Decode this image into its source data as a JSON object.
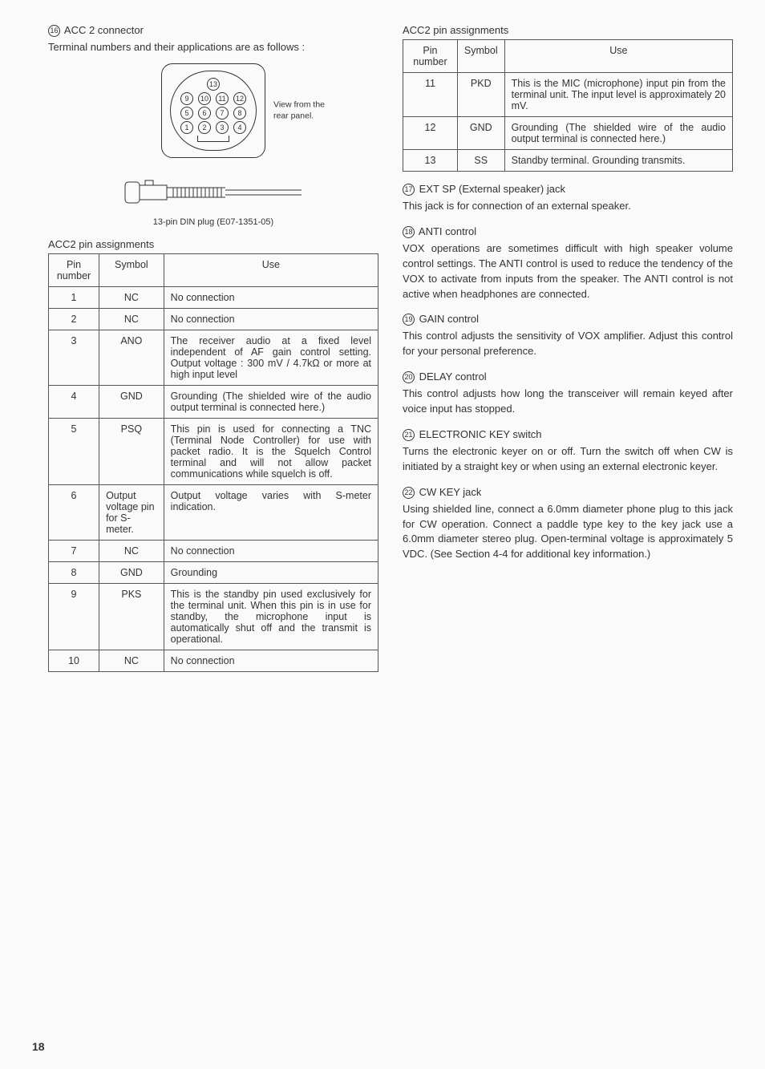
{
  "left": {
    "hd_num": "16",
    "hd_title": "ACC 2 connector",
    "intro": "Terminal numbers and their applications are as follows :",
    "din_note_l1": "View from the",
    "din_note_l2": "rear panel.",
    "din_caption": "13-pin DIN plug (E07-1351-05)",
    "table_title": "ACC2 pin assignments",
    "th_pin": "Pin number",
    "th_sym": "Symbol",
    "th_use": "Use",
    "rows": [
      {
        "n": "1",
        "s": "NC",
        "u": "No connection"
      },
      {
        "n": "2",
        "s": "NC",
        "u": "No connection"
      },
      {
        "n": "3",
        "s": "ANO",
        "u": "The receiver audio at a fixed level independent of AF gain control setting. Output voltage : 300 mV / 4.7kΩ or more at high input level"
      },
      {
        "n": "4",
        "s": "GND",
        "u": "Grounding (The shielded wire of the audio output terminal is connected here.)"
      },
      {
        "n": "5",
        "s": "PSQ",
        "u": "This pin is used for connecting a TNC (Terminal Node Controller) for use with packet radio. It is the Squelch Control terminal and will not allow packet communications while squelch is off."
      },
      {
        "n": "6",
        "s": "Output voltage pin for S-meter.",
        "u": "Output voltage varies with S-meter indication."
      },
      {
        "n": "7",
        "s": "NC",
        "u": "No connection"
      },
      {
        "n": "8",
        "s": "GND",
        "u": "Grounding"
      },
      {
        "n": "9",
        "s": "PKS",
        "u": "This is the standby pin used exclusively for the terminal unit. When this pin is in use for standby, the microphone input is automatically shut off and the transmit is operational."
      },
      {
        "n": "10",
        "s": "NC",
        "u": "No connection"
      }
    ]
  },
  "right": {
    "table_title": "ACC2 pin assignments",
    "th_pin": "Pin number",
    "th_sym": "Symbol",
    "th_use": "Use",
    "rows": [
      {
        "n": "11",
        "s": "PKD",
        "u": "This is the MIC (microphone) input pin from the terminal unit. The input level is approximately 20 mV."
      },
      {
        "n": "12",
        "s": "GND",
        "u": "Grounding (The shielded wire of the audio output terminal is connected here.)"
      },
      {
        "n": "13",
        "s": "SS",
        "u": "Standby terminal. Grounding transmits."
      }
    ],
    "sections": [
      {
        "num": "17",
        "title": "EXT SP (External speaker) jack",
        "body": "This jack is for connection of an external speaker."
      },
      {
        "num": "18",
        "title": "ANTI control",
        "body": "VOX operations are sometimes difficult with high speaker volume control settings. The ANTI control is used to reduce the tendency of the VOX to activate from inputs from the speaker. The ANTI control is not active when headphones are connected."
      },
      {
        "num": "19",
        "title": "GAIN control",
        "body": "This control adjusts the sensitivity of VOX amplifier. Adjust this control for your personal preference."
      },
      {
        "num": "20",
        "title": "DELAY control",
        "body": "This control adjusts how long the transceiver will remain keyed after voice input has stopped."
      },
      {
        "num": "21",
        "title": "ELECTRONIC KEY switch",
        "body": "Turns the electronic keyer on or off. Turn the switch off when CW is initiated by a straight key or when using an external electronic keyer."
      },
      {
        "num": "22",
        "title": "CW KEY jack",
        "body": "Using shielded line, connect a 6.0mm diameter phone plug to this jack for CW operation. Connect a paddle type key to the key jack use a 6.0mm diameter stereo plug. Open-terminal voltage is approximately 5 VDC. (See Section 4-4 for additional key information.)"
      }
    ]
  },
  "page_number": "18",
  "din_pins": {
    "r1": [
      "13"
    ],
    "r2": [
      "9",
      "10",
      "11",
      "12"
    ],
    "r3": [
      "5",
      "6",
      "7",
      "8"
    ],
    "r4": [
      "1",
      "2",
      "3",
      "4"
    ]
  }
}
